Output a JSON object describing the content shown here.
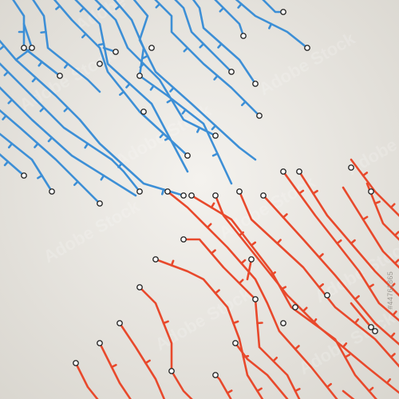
{
  "image": {
    "description_kind": "circuit-board-trace-pattern",
    "colors": {
      "background_center": "#f4f2ee",
      "background_edge": "#d9d6cf",
      "blue_trace": "#3d8fd6",
      "red_trace": "#e8492c",
      "node_stroke": "#2a2a2a",
      "node_fill": "#ffffff"
    },
    "watermark": {
      "text": "Adobe Stock",
      "color": "#ffffff",
      "opacity": 0.18
    },
    "stock_id": "#44761865"
  }
}
